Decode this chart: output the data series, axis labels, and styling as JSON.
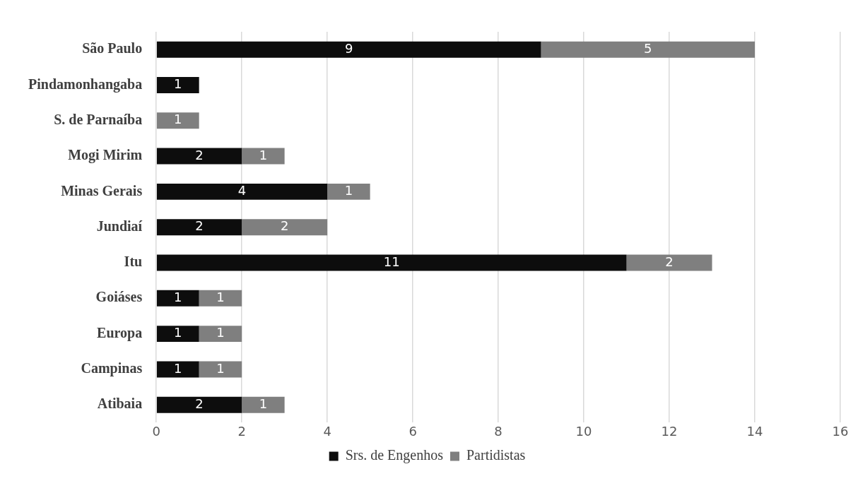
{
  "chart_data": {
    "type": "bar",
    "orientation": "horizontal",
    "stacked": true,
    "categories": [
      "São Paulo",
      "Pindamonhangaba",
      "S. de Parnaíba",
      "Mogi Mirim",
      "Minas Gerais",
      "Jundiaí",
      "Itu",
      "Goiáses",
      "Europa",
      "Campinas",
      "Atibaia"
    ],
    "series": [
      {
        "name": "Srs. de Engenhos",
        "color": "#0d0d0d",
        "values": [
          9,
          1,
          null,
          2,
          4,
          2,
          11,
          1,
          1,
          1,
          2
        ]
      },
      {
        "name": "Partidistas",
        "color": "#7f7f7f",
        "values": [
          5,
          null,
          1,
          1,
          1,
          2,
          2,
          1,
          1,
          1,
          1
        ]
      }
    ],
    "xlim": [
      0,
      16
    ],
    "xticks": [
      0,
      2,
      4,
      6,
      8,
      10,
      12,
      14,
      16
    ],
    "grid": "x",
    "legend": "bottom",
    "data_labels": true
  }
}
